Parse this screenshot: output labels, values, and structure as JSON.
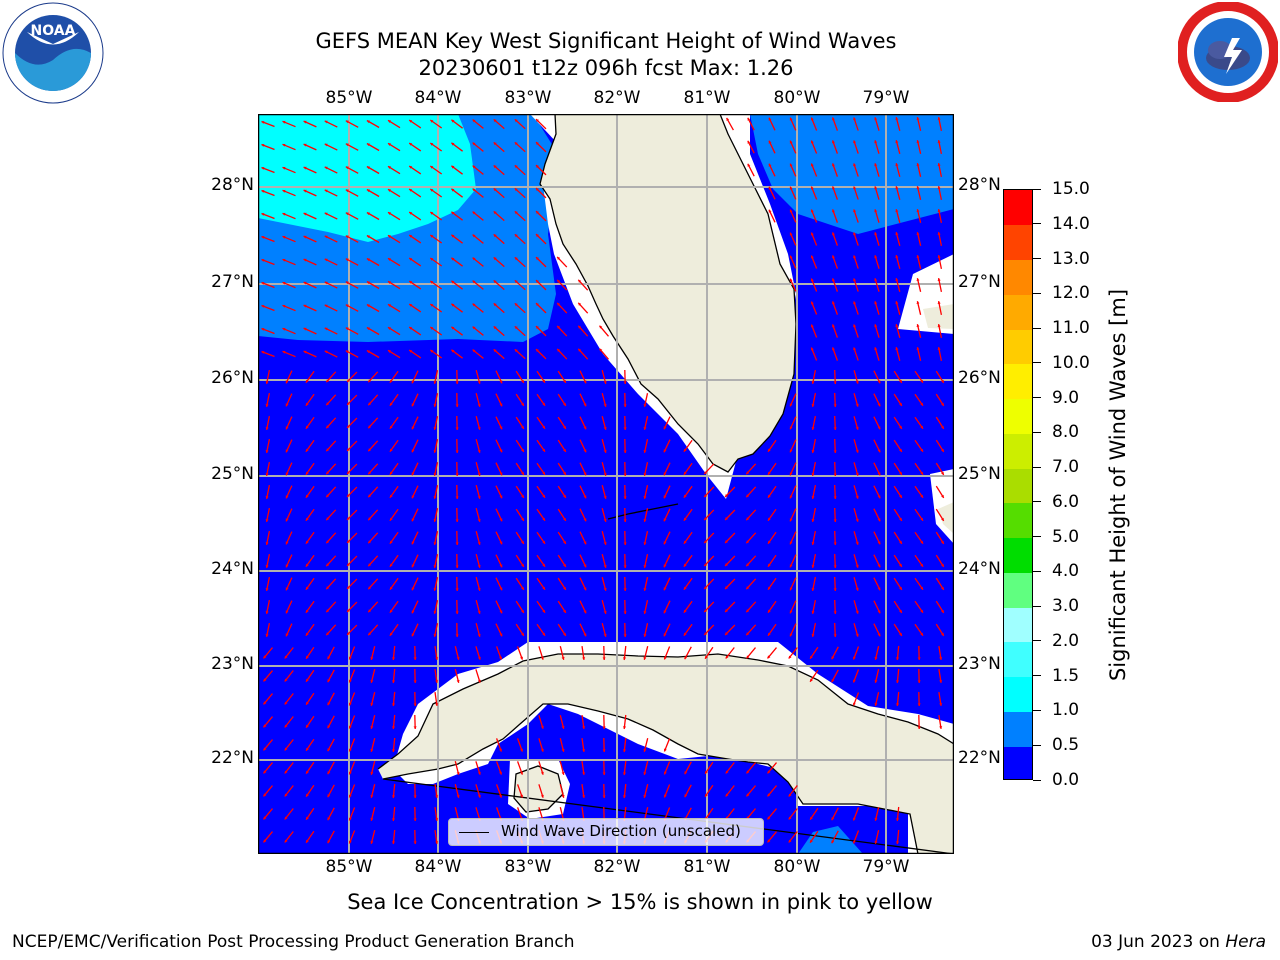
{
  "header": {
    "title_line1": "GEFS MEAN Key West Significant Height of Wind Waves",
    "title_line2": "20230601 t12z 096h fcst   Max: 1.26"
  },
  "logos": {
    "left": {
      "icon": "noaa-logo",
      "text": "NOAA"
    },
    "right": {
      "icon": "nws-logo"
    }
  },
  "map": {
    "lon_labels": [
      "85°W",
      "84°W",
      "83°W",
      "82°W",
      "81°W",
      "80°W",
      "79°W"
    ],
    "lat_labels": [
      "28°N",
      "27°N",
      "26°N",
      "25°N",
      "24°N",
      "23°N",
      "22°N"
    ],
    "legend_label": "Wind Wave Direction (unscaled)",
    "colors": {
      "land": "#EEEDDC",
      "coast": "#000000",
      "arrows": "#FF0000",
      "gridlines": "#B0B0B0",
      "wave_0_0p5": "#0000FF",
      "wave_0p5_1": "#0080FF",
      "wave_1_1p5": "#00FFFF",
      "no_data": "#FFFFFF"
    }
  },
  "colorbar": {
    "label": "Significant Height of Wind Waves [m]",
    "ticks": [
      "0.0",
      "0.5",
      "1.0",
      "1.5",
      "2.0",
      "3.0",
      "4.0",
      "5.0",
      "6.0",
      "7.0",
      "8.0",
      "9.0",
      "10.0",
      "11.0",
      "12.0",
      "13.0",
      "14.0",
      "15.0"
    ],
    "colors": [
      "#0000FF",
      "#0080FF",
      "#00FFFF",
      "#40FFFF",
      "#A0FFFF",
      "#60FF80",
      "#00DD00",
      "#55DD00",
      "#AADD00",
      "#CCEE00",
      "#EEFF00",
      "#FFEE00",
      "#FFCC00",
      "#FFAA00",
      "#FF8800",
      "#FF4400",
      "#FF0000"
    ]
  },
  "notes": {
    "ice": "Sea Ice Concentration > 15% is shown in pink to yellow"
  },
  "footer": {
    "left": "NCEP/EMC/Verification Post Processing Product Generation Branch",
    "right_prefix": "03 Jun 2023 on ",
    "right_host": "Hera"
  }
}
